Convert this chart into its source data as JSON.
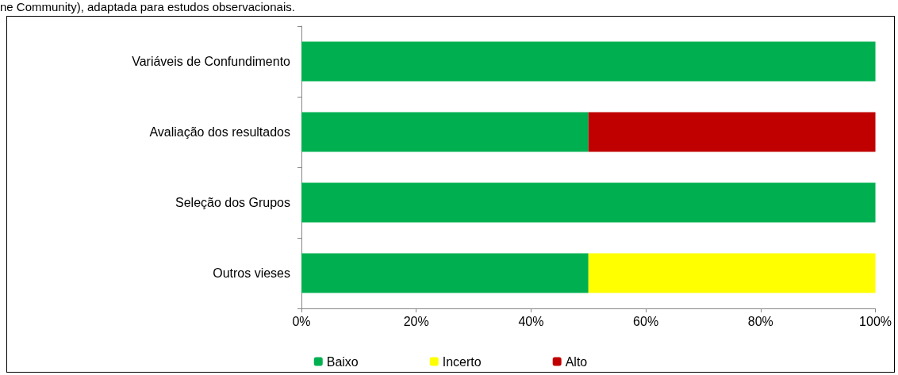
{
  "chart_data": {
    "type": "bar",
    "orientation": "horizontal",
    "stacked": true,
    "categories": [
      "Variáveis de Confundimento",
      "Avaliação dos resultados",
      "Seleção dos Grupos",
      "Outros vieses"
    ],
    "series": [
      {
        "name": "Baixo",
        "color": "#00b050",
        "values": [
          100,
          50,
          100,
          50
        ]
      },
      {
        "name": "Incerto",
        "color": "#ffff00",
        "values": [
          0,
          0,
          0,
          50
        ]
      },
      {
        "name": "Alto",
        "color": "#c00000",
        "values": [
          0,
          50,
          0,
          0
        ]
      }
    ],
    "xlim": [
      0,
      100
    ],
    "xticks": [
      {
        "value": 0,
        "label": "0%"
      },
      {
        "value": 20,
        "label": "20%"
      },
      {
        "value": 40,
        "label": "40%"
      },
      {
        "value": 60,
        "label": "60%"
      },
      {
        "value": 80,
        "label": "80%"
      },
      {
        "value": 100,
        "label": "100%"
      }
    ],
    "grid": false,
    "legend": "bottom",
    "annotations": [
      "ne Community), adaptada para estudos observacionais."
    ]
  }
}
